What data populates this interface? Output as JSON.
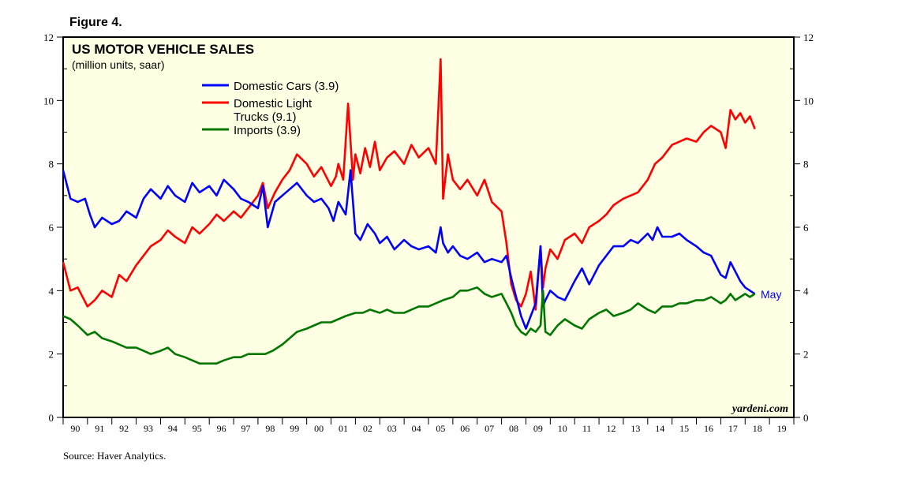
{
  "figure_label": "Figure 4.",
  "source": "Source: Haver Analytics.",
  "brand": "yardeni.com",
  "colors": {
    "background": "#FFFFE3",
    "domestic_cars": "#0000FF",
    "domestic_trucks": "#FF0000",
    "imports": "#007700"
  },
  "chart_data": {
    "type": "line",
    "title": "US MOTOR VEHICLE SALES",
    "subtitle": "(million units, saar)",
    "xlabel": "",
    "ylabel": "",
    "ylim": [
      0,
      12
    ],
    "yticks": [
      "0",
      "2",
      "4",
      "6",
      "8",
      "10",
      "12"
    ],
    "xlim": [
      1990,
      2020
    ],
    "xtick_labels": [
      "90",
      "91",
      "92",
      "93",
      "94",
      "95",
      "96",
      "97",
      "98",
      "99",
      "00",
      "01",
      "02",
      "03",
      "04",
      "05",
      "06",
      "07",
      "08",
      "09",
      "10",
      "11",
      "12",
      "13",
      "14",
      "15",
      "16",
      "17",
      "18",
      "19"
    ],
    "legend": {
      "placement": "top-left",
      "entries": [
        "Domestic Cars (3.9)",
        "Domestic Light Trucks (9.1)",
        "Imports (3.9)"
      ]
    },
    "annotation": {
      "text": "May",
      "x": 2018.4,
      "y": 3.9
    },
    "series": [
      {
        "name": "Domestic Cars (3.9)",
        "color": "#0000FF",
        "x": [
          1990,
          1990.3,
          1990.6,
          1990.9,
          1991.1,
          1991.3,
          1991.6,
          1992,
          1992.3,
          1992.6,
          1993,
          1993.3,
          1993.6,
          1994,
          1994.3,
          1994.6,
          1995,
          1995.3,
          1995.6,
          1996,
          1996.3,
          1996.6,
          1997,
          1997.3,
          1997.6,
          1998,
          1998.2,
          1998.4,
          1998.7,
          1999,
          1999.3,
          1999.6,
          2000,
          2000.3,
          2000.6,
          2000.9,
          2001.1,
          2001.3,
          2001.6,
          2001.8,
          2002,
          2002.2,
          2002.5,
          2002.8,
          2003,
          2003.3,
          2003.6,
          2004,
          2004.3,
          2004.6,
          2005,
          2005.3,
          2005.5,
          2005.6,
          2005.8,
          2006,
          2006.3,
          2006.6,
          2007,
          2007.3,
          2007.6,
          2008,
          2008.2,
          2008.4,
          2008.6,
          2008.8,
          2009,
          2009.2,
          2009.4,
          2009.6,
          2009.7,
          2009.8,
          2010,
          2010.3,
          2010.6,
          2011,
          2011.3,
          2011.6,
          2012,
          2012.3,
          2012.6,
          2013,
          2013.3,
          2013.6,
          2014,
          2014.2,
          2014.4,
          2014.6,
          2015,
          2015.3,
          2015.6,
          2016,
          2016.3,
          2016.6,
          2017,
          2017.2,
          2017.4,
          2017.6,
          2017.8,
          2018,
          2018.2,
          2018.4
        ],
        "y": [
          7.8,
          6.9,
          6.8,
          6.9,
          6.4,
          6.0,
          6.3,
          6.1,
          6.2,
          6.5,
          6.3,
          6.9,
          7.2,
          6.9,
          7.3,
          7.0,
          6.8,
          7.4,
          7.1,
          7.3,
          7.0,
          7.5,
          7.2,
          6.9,
          6.8,
          6.6,
          7.3,
          6.0,
          6.8,
          7.0,
          7.2,
          7.4,
          7.0,
          6.8,
          6.9,
          6.6,
          6.2,
          6.8,
          6.4,
          7.8,
          5.8,
          5.6,
          6.1,
          5.8,
          5.5,
          5.7,
          5.3,
          5.6,
          5.4,
          5.3,
          5.4,
          5.2,
          6.0,
          5.5,
          5.2,
          5.4,
          5.1,
          5.0,
          5.2,
          4.9,
          5.0,
          4.9,
          5.1,
          4.4,
          3.8,
          3.2,
          2.8,
          3.2,
          3.6,
          5.4,
          3.5,
          3.7,
          4.0,
          3.8,
          3.7,
          4.3,
          4.7,
          4.2,
          4.8,
          5.1,
          5.4,
          5.4,
          5.6,
          5.5,
          5.8,
          5.6,
          6.0,
          5.7,
          5.7,
          5.8,
          5.6,
          5.4,
          5.2,
          5.1,
          4.5,
          4.4,
          4.9,
          4.6,
          4.3,
          4.1,
          4.0,
          3.9
        ]
      },
      {
        "name": "Domestic Light Trucks (9.1)",
        "color": "#FF0000",
        "x": [
          1990,
          1990.3,
          1990.6,
          1991,
          1991.3,
          1991.6,
          1992,
          1992.3,
          1992.6,
          1993,
          1993.3,
          1993.6,
          1994,
          1994.3,
          1994.6,
          1995,
          1995.3,
          1995.6,
          1996,
          1996.3,
          1996.6,
          1997,
          1997.3,
          1997.6,
          1998,
          1998.2,
          1998.4,
          1998.7,
          1999,
          1999.3,
          1999.6,
          2000,
          2000.3,
          2000.6,
          2001,
          2001.2,
          2001.3,
          2001.5,
          2001.7,
          2001.9,
          2002,
          2002.2,
          2002.4,
          2002.6,
          2002.8,
          2003,
          2003.3,
          2003.6,
          2004,
          2004.3,
          2004.6,
          2005,
          2005.3,
          2005.5,
          2005.6,
          2005.8,
          2006,
          2006.3,
          2006.6,
          2007,
          2007.3,
          2007.6,
          2008,
          2008.2,
          2008.4,
          2008.6,
          2008.8,
          2009,
          2009.2,
          2009.4,
          2009.6,
          2009.7,
          2009.8,
          2010,
          2010.3,
          2010.6,
          2011,
          2011.3,
          2011.6,
          2012,
          2012.3,
          2012.6,
          2013,
          2013.3,
          2013.6,
          2014,
          2014.3,
          2014.6,
          2015,
          2015.3,
          2015.6,
          2016,
          2016.3,
          2016.6,
          2017,
          2017.2,
          2017.4,
          2017.6,
          2017.8,
          2018,
          2018.2,
          2018.4
        ],
        "y": [
          4.9,
          4.0,
          4.1,
          3.5,
          3.7,
          4.0,
          3.8,
          4.5,
          4.3,
          4.8,
          5.1,
          5.4,
          5.6,
          5.9,
          5.7,
          5.5,
          6.0,
          5.8,
          6.1,
          6.4,
          6.2,
          6.5,
          6.3,
          6.6,
          7.0,
          7.4,
          6.6,
          7.1,
          7.5,
          7.8,
          8.3,
          8.0,
          7.6,
          7.9,
          7.3,
          7.6,
          8.0,
          7.5,
          9.9,
          7.5,
          8.3,
          7.7,
          8.5,
          7.9,
          8.7,
          7.8,
          8.2,
          8.4,
          8.0,
          8.6,
          8.2,
          8.5,
          8.0,
          11.3,
          6.9,
          8.3,
          7.5,
          7.2,
          7.5,
          7.0,
          7.5,
          6.8,
          6.5,
          5.5,
          4.2,
          3.7,
          3.5,
          3.9,
          4.6,
          3.4,
          5.4,
          4.1,
          4.7,
          5.3,
          5.0,
          5.6,
          5.8,
          5.5,
          6.0,
          6.2,
          6.4,
          6.7,
          6.9,
          7.0,
          7.1,
          7.5,
          8.0,
          8.2,
          8.6,
          8.7,
          8.8,
          8.7,
          9.0,
          9.2,
          9.0,
          8.5,
          9.7,
          9.4,
          9.6,
          9.3,
          9.5,
          9.1
        ]
      },
      {
        "name": "Imports (3.9)",
        "color": "#007700",
        "x": [
          1990,
          1990.3,
          1990.6,
          1991,
          1991.3,
          1991.6,
          1992,
          1992.3,
          1992.6,
          1993,
          1993.3,
          1993.6,
          1994,
          1994.3,
          1994.6,
          1995,
          1995.3,
          1995.6,
          1996,
          1996.3,
          1996.6,
          1997,
          1997.3,
          1997.6,
          1998,
          1998.3,
          1998.6,
          1999,
          1999.3,
          1999.6,
          2000,
          2000.3,
          2000.6,
          2001,
          2001.3,
          2001.6,
          2002,
          2002.3,
          2002.6,
          2003,
          2003.3,
          2003.6,
          2004,
          2004.3,
          2004.6,
          2005,
          2005.3,
          2005.6,
          2006,
          2006.3,
          2006.6,
          2007,
          2007.3,
          2007.6,
          2008,
          2008.2,
          2008.4,
          2008.6,
          2008.8,
          2009,
          2009.2,
          2009.4,
          2009.6,
          2009.7,
          2009.8,
          2010,
          2010.3,
          2010.6,
          2011,
          2011.3,
          2011.6,
          2012,
          2012.3,
          2012.6,
          2013,
          2013.3,
          2013.6,
          2014,
          2014.3,
          2014.6,
          2015,
          2015.3,
          2015.6,
          2016,
          2016.3,
          2016.6,
          2017,
          2017.2,
          2017.4,
          2017.6,
          2017.8,
          2018,
          2018.2,
          2018.4
        ],
        "y": [
          3.2,
          3.1,
          2.9,
          2.6,
          2.7,
          2.5,
          2.4,
          2.3,
          2.2,
          2.2,
          2.1,
          2.0,
          2.1,
          2.2,
          2.0,
          1.9,
          1.8,
          1.7,
          1.7,
          1.7,
          1.8,
          1.9,
          1.9,
          2.0,
          2.0,
          2.0,
          2.1,
          2.3,
          2.5,
          2.7,
          2.8,
          2.9,
          3.0,
          3.0,
          3.1,
          3.2,
          3.3,
          3.3,
          3.4,
          3.3,
          3.4,
          3.3,
          3.3,
          3.4,
          3.5,
          3.5,
          3.6,
          3.7,
          3.8,
          4.0,
          4.0,
          4.1,
          3.9,
          3.8,
          3.9,
          3.6,
          3.3,
          2.9,
          2.7,
          2.6,
          2.8,
          2.7,
          2.9,
          4.0,
          2.7,
          2.6,
          2.9,
          3.1,
          2.9,
          2.8,
          3.1,
          3.3,
          3.4,
          3.2,
          3.3,
          3.4,
          3.6,
          3.4,
          3.3,
          3.5,
          3.5,
          3.6,
          3.6,
          3.7,
          3.7,
          3.8,
          3.6,
          3.7,
          3.9,
          3.7,
          3.8,
          3.9,
          3.8,
          3.9
        ]
      }
    ]
  }
}
